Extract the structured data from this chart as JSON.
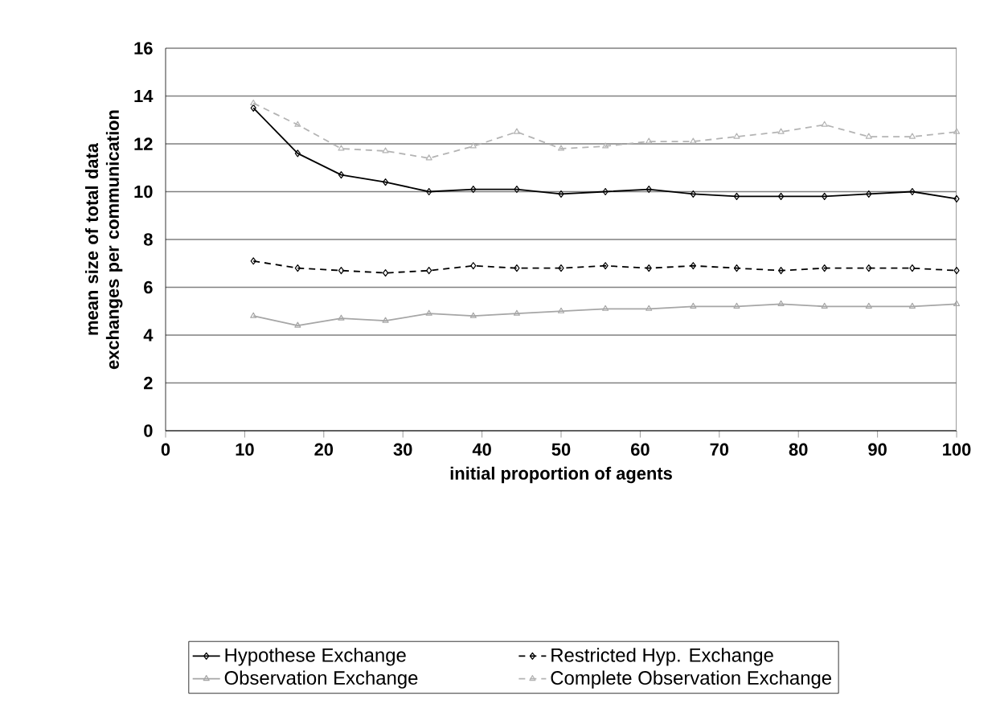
{
  "chart_data": {
    "type": "line",
    "xlabel": "initial proportion of agents",
    "ylabel": "mean size of total data exchanges per communication",
    "x": [
      11.1,
      16.7,
      22.2,
      27.8,
      33.3,
      38.9,
      44.4,
      50,
      55.6,
      61.1,
      66.7,
      72.2,
      77.8,
      83.3,
      88.9,
      94.4,
      100
    ],
    "series": [
      {
        "name": "Hypothese Exchange",
        "color": "#000000",
        "marker": "diamond",
        "line_style": "solid",
        "values": [
          13.5,
          11.6,
          10.7,
          10.4,
          10.0,
          10.1,
          10.1,
          9.9,
          10.0,
          10.1,
          9.9,
          9.8,
          9.8,
          9.8,
          9.9,
          10.0,
          9.7
        ]
      },
      {
        "name": "Restricted Hyp. Exchange",
        "color": "#000000",
        "marker": "diamond",
        "line_style": "dashed",
        "values": [
          7.1,
          6.8,
          6.7,
          6.6,
          6.7,
          6.9,
          6.8,
          6.8,
          6.9,
          6.8,
          6.9,
          6.8,
          6.7,
          6.8,
          6.8,
          6.8,
          6.7
        ]
      },
      {
        "name": "Observation Exchange",
        "color": "#a6a6a6",
        "marker": "triangle",
        "line_style": "solid",
        "values": [
          4.8,
          4.4,
          4.7,
          4.6,
          4.9,
          4.8,
          4.9,
          5.0,
          5.1,
          5.1,
          5.2,
          5.2,
          5.3,
          5.2,
          5.2,
          5.2,
          5.3
        ]
      },
      {
        "name": "Complete Observation Exchange",
        "color": "#b4b4b4",
        "marker": "triangle",
        "line_style": "dashed",
        "values": [
          13.7,
          12.8,
          11.8,
          11.7,
          11.4,
          11.9,
          12.5,
          11.8,
          11.9,
          12.1,
          12.1,
          12.3,
          12.5,
          12.8,
          12.3,
          12.3,
          12.5
        ]
      }
    ],
    "xlim": [
      0,
      100
    ],
    "xticks": [
      0,
      10,
      20,
      30,
      40,
      50,
      60,
      70,
      80,
      90,
      100
    ],
    "ylim": [
      0,
      16
    ],
    "yticks": [
      0,
      2,
      4,
      6,
      8,
      10,
      12,
      14,
      16
    ],
    "grid": "y",
    "legend": "bottom"
  }
}
